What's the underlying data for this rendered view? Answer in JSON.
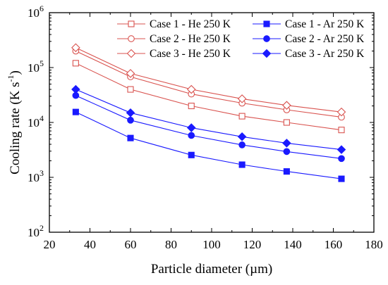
{
  "chart_data": {
    "type": "line",
    "xlabel": "Particle diameter (µm)",
    "ylabel_main": "Cooling rate (K s",
    "ylabel_sup": "-1",
    "ylabel_end": ")",
    "xlim": [
      20,
      180
    ],
    "ylim": [
      100,
      1000000
    ],
    "yscale": "log",
    "x_ticks": [
      20,
      40,
      60,
      80,
      100,
      120,
      140,
      160,
      180
    ],
    "x_tick_labels": [
      "20",
      "40",
      "60",
      "80",
      "100",
      "120",
      "140",
      "160",
      "180"
    ],
    "y_ticks": [
      100,
      1000,
      10000,
      100000,
      1000000
    ],
    "y_tick_labels": [
      {
        "base": "10",
        "exp": "2"
      },
      {
        "base": "10",
        "exp": "3"
      },
      {
        "base": "10",
        "exp": "4"
      },
      {
        "base": "10",
        "exp": "5"
      },
      {
        "base": "10",
        "exp": "6"
      }
    ],
    "grid": false,
    "legend_position": "top-right",
    "x": [
      33,
      60,
      90,
      115,
      137,
      164
    ],
    "series": [
      {
        "name": "Case 1 - He 250 K",
        "marker": "square",
        "filled": false,
        "color": "#d9534f",
        "values": [
          120000,
          40000,
          20000,
          13000,
          10000,
          7300
        ]
      },
      {
        "name": "Case 1 - Ar 250 K",
        "marker": "square",
        "filled": true,
        "color": "#1a1aff",
        "values": [
          15500,
          5200,
          2550,
          1700,
          1280,
          940
        ]
      },
      {
        "name": "Case 2 - He 250 K",
        "marker": "circle",
        "filled": false,
        "color": "#d9534f",
        "values": [
          200000,
          68000,
          33000,
          22500,
          17000,
          12500
        ]
      },
      {
        "name": "Case 2 - Ar 250 K",
        "marker": "circle",
        "filled": true,
        "color": "#1a1aff",
        "values": [
          31000,
          11000,
          5800,
          3900,
          2950,
          2200
        ]
      },
      {
        "name": "Case 3 - He 250 K",
        "marker": "diamond",
        "filled": false,
        "color": "#d9534f",
        "values": [
          230000,
          78000,
          40000,
          27000,
          20500,
          15500
        ]
      },
      {
        "name": "Case 3 - Ar 250 K",
        "marker": "diamond",
        "filled": true,
        "color": "#1a1aff",
        "values": [
          40000,
          15000,
          8000,
          5500,
          4200,
          3200
        ]
      }
    ]
  }
}
